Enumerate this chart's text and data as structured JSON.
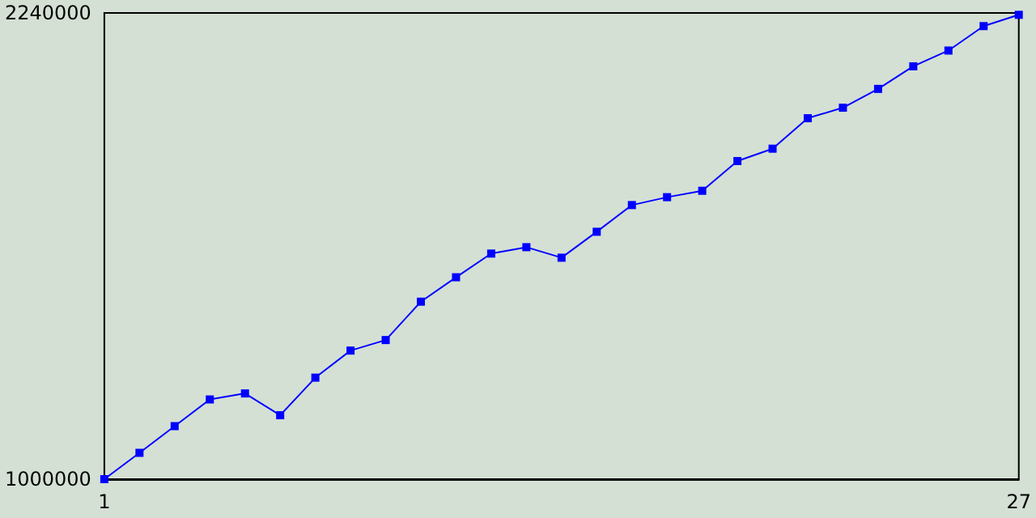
{
  "chart_data": {
    "type": "line",
    "x": [
      1,
      2,
      3,
      4,
      5,
      6,
      7,
      8,
      9,
      10,
      11,
      12,
      13,
      14,
      15,
      16,
      17,
      18,
      19,
      20,
      21,
      22,
      23,
      24,
      25,
      26,
      27
    ],
    "series": [
      {
        "color": "#0000ff",
        "values": [
          1000000,
          1070000,
          1141000,
          1212000,
          1228000,
          1170000,
          1270000,
          1342000,
          1370000,
          1472000,
          1537000,
          1600000,
          1617000,
          1589000,
          1658000,
          1729000,
          1750000,
          1767000,
          1846000,
          1879000,
          1960000,
          1988000,
          2038000,
          2098000,
          2140000,
          2205000,
          2235000
        ]
      }
    ],
    "xlim": [
      1,
      27
    ],
    "xticks": [
      1,
      27
    ],
    "ylim": [
      1000000,
      2240000
    ],
    "yticks": [
      1000000,
      2240000
    ],
    "grid": false,
    "marker": "square",
    "line_style": "solid"
  }
}
